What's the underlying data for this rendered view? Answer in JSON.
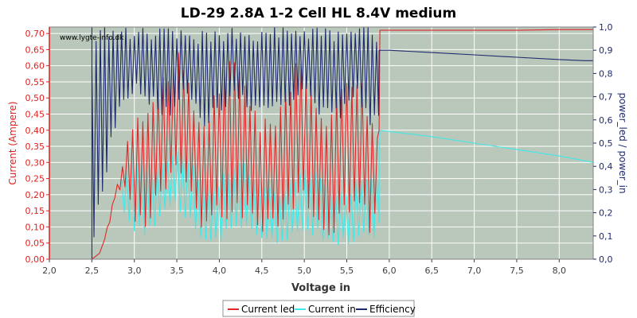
{
  "chart_data": {
    "type": "line",
    "title": "LD-29 2.8A 1-2 Cell HL 8.4V medium",
    "watermark": "www.lygte-info.dk",
    "xlabel": "Voltage in",
    "ylabel_left": "Current (Ampere)",
    "ylabel_right": "power_led / power_in",
    "xlim": [
      2.0,
      8.4
    ],
    "ylim_left": [
      0.0,
      0.72
    ],
    "ylim_right": [
      0.0,
      1.0
    ],
    "grid": true,
    "legend_position": "bottom-center",
    "x_ticks": [
      "2,0",
      "2,5",
      "3,0",
      "3,5",
      "4,0",
      "4,5",
      "5,0",
      "5,5",
      "6,0",
      "6,5",
      "7,0",
      "7,5",
      "8,0"
    ],
    "y_left_ticks": [
      "0,00",
      "0,05",
      "0,10",
      "0,15",
      "0,20",
      "0,25",
      "0,30",
      "0,35",
      "0,40",
      "0,45",
      "0,50",
      "0,55",
      "0,60",
      "0,65",
      "0,70"
    ],
    "y_right_ticks": [
      "0,0",
      "0,1",
      "0,2",
      "0,3",
      "0,4",
      "0,5",
      "0,6",
      "0,7",
      "0,8",
      "0,9",
      "1,0"
    ],
    "colors": {
      "plot_bg": "#b9c8ba",
      "grid": "#ffffff",
      "current_led": "#e0282a",
      "current_in": "#40e8e8",
      "efficiency": "#1e2a6e",
      "left_axis": "#e02020",
      "right_axis": "#1e2a6e"
    },
    "series": [
      {
        "name": "Current led",
        "axis": "left",
        "envelope": {
          "x": [
            2.5,
            2.6,
            2.7,
            2.78,
            2.85,
            2.9,
            3.0,
            3.1,
            3.2,
            3.3,
            3.4,
            3.5,
            3.6,
            3.65,
            3.7,
            3.8,
            3.9,
            4.0,
            4.1,
            4.2,
            4.3,
            4.4,
            4.5,
            4.6,
            4.7,
            4.8,
            4.9,
            5.0,
            5.1,
            5.2,
            5.3,
            5.4,
            5.5,
            5.6,
            5.7,
            5.8,
            5.88
          ],
          "hi": [
            0.0,
            0.02,
            0.12,
            0.22,
            0.28,
            0.36,
            0.48,
            0.5,
            0.52,
            0.56,
            0.62,
            0.65,
            0.6,
            0.54,
            0.5,
            0.44,
            0.5,
            0.58,
            0.62,
            0.64,
            0.6,
            0.5,
            0.43,
            0.45,
            0.5,
            0.58,
            0.62,
            0.6,
            0.55,
            0.5,
            0.47,
            0.55,
            0.62,
            0.63,
            0.55,
            0.45,
            0.4
          ],
          "lo": [
            0.0,
            0.02,
            0.1,
            0.2,
            0.22,
            0.2,
            0.1,
            0.08,
            0.12,
            0.16,
            0.2,
            0.22,
            0.22,
            0.18,
            0.14,
            0.08,
            0.07,
            0.1,
            0.12,
            0.14,
            0.12,
            0.09,
            0.08,
            0.08,
            0.1,
            0.12,
            0.14,
            0.14,
            0.12,
            0.1,
            0.07,
            0.06,
            0.08,
            0.12,
            0.1,
            0.07,
            0.1
          ]
        },
        "x": [
          5.88,
          5.89,
          7.5,
          8.0,
          8.4
        ],
        "values": [
          0.4,
          0.71,
          0.71,
          0.712,
          0.712
        ]
      },
      {
        "name": "Current in",
        "axis": "left",
        "envelope": {
          "x": [
            2.85,
            2.9,
            3.0,
            3.1,
            3.2,
            3.3,
            3.4,
            3.5,
            3.6,
            3.7,
            3.8,
            3.9,
            4.0,
            4.1,
            4.2,
            4.3,
            4.4,
            4.5,
            4.6,
            4.7,
            4.8,
            4.9,
            5.0,
            5.1,
            5.2,
            5.3,
            5.4,
            5.5,
            5.6,
            5.7,
            5.8,
            5.88
          ],
          "hi": [
            0.25,
            0.3,
            0.35,
            0.33,
            0.3,
            0.3,
            0.32,
            0.34,
            0.34,
            0.3,
            0.26,
            0.24,
            0.26,
            0.28,
            0.3,
            0.3,
            0.28,
            0.25,
            0.22,
            0.22,
            0.24,
            0.26,
            0.28,
            0.28,
            0.26,
            0.24,
            0.22,
            0.22,
            0.24,
            0.26,
            0.27,
            0.28
          ],
          "lo": [
            0.18,
            0.12,
            0.07,
            0.06,
            0.08,
            0.12,
            0.14,
            0.16,
            0.12,
            0.08,
            0.05,
            0.04,
            0.05,
            0.06,
            0.08,
            0.09,
            0.07,
            0.05,
            0.04,
            0.04,
            0.05,
            0.06,
            0.08,
            0.07,
            0.06,
            0.05,
            0.04,
            0.03,
            0.04,
            0.05,
            0.04,
            0.1
          ]
        },
        "x": [
          5.88,
          6.5,
          7.0,
          7.5,
          8.0,
          8.4
        ],
        "values": [
          0.4,
          0.38,
          0.36,
          0.34,
          0.32,
          0.3
        ]
      },
      {
        "name": "Efficiency",
        "axis": "right",
        "envelope": {
          "x": [
            2.5,
            2.8,
            3.0,
            3.2,
            3.4,
            3.6,
            3.8,
            4.0,
            4.2,
            4.4,
            4.6,
            4.8,
            5.0,
            5.2,
            5.4,
            5.6,
            5.8,
            5.88
          ],
          "hi": [
            1.0,
            1.0,
            1.0,
            1.0,
            1.0,
            1.0,
            1.0,
            1.0,
            1.0,
            1.0,
            1.0,
            1.0,
            1.0,
            1.0,
            1.0,
            1.0,
            1.0,
            1.0
          ],
          "lo": [
            0.0,
            0.6,
            0.72,
            0.65,
            0.6,
            0.7,
            0.55,
            0.62,
            0.7,
            0.6,
            0.62,
            0.65,
            0.72,
            0.6,
            0.58,
            0.7,
            0.55,
            0.62
          ]
        },
        "x": [
          2.5,
          5.88,
          6.0,
          6.5,
          7.0,
          7.5,
          8.0,
          8.3,
          8.4
        ],
        "values": [
          0.0,
          0.9,
          0.9,
          0.89,
          0.88,
          0.87,
          0.86,
          0.855,
          0.855
        ]
      }
    ]
  }
}
